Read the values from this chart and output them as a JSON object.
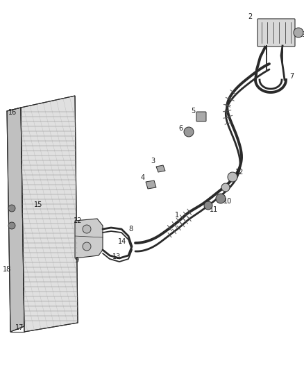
{
  "background_color": "#ffffff",
  "line_color": "#2a2a2a",
  "label_color": "#1a1a1a",
  "label_fontsize": 7.0,
  "figsize": [
    4.38,
    5.33
  ],
  "dpi": 100
}
